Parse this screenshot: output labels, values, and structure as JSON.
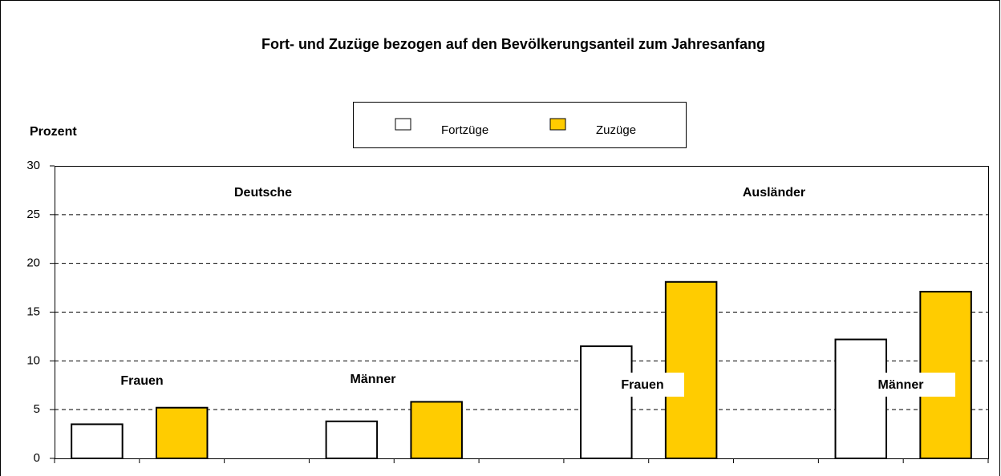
{
  "chart_data": {
    "type": "bar",
    "title": "Fort- und Zuzüge bezogen auf den Bevölkerungsanteil zum Jahresanfang",
    "y_label": "Prozent",
    "categories": [
      null,
      null,
      null,
      null,
      null,
      null,
      null,
      null,
      null,
      null,
      null
    ],
    "series": [
      {
        "name": "Fortzüge",
        "color": "#ffffff",
        "values": [
          3.5,
          null,
          null,
          3.8,
          null,
          null,
          11.5,
          null,
          null,
          12.2,
          null
        ]
      },
      {
        "name": "Zuzüge",
        "color": "#ffcc00",
        "values": [
          null,
          5.2,
          null,
          null,
          5.8,
          null,
          null,
          18.1,
          null,
          null,
          17.1
        ]
      }
    ],
    "annotations": [
      "Deutsche",
      "Ausländer",
      "Frauen",
      "Männer",
      "Frauen",
      "Männer"
    ],
    "ylim": [
      0,
      30
    ],
    "yticks": [
      0,
      5,
      10,
      15,
      20,
      25,
      30
    ],
    "grid": true,
    "legend": "top"
  }
}
